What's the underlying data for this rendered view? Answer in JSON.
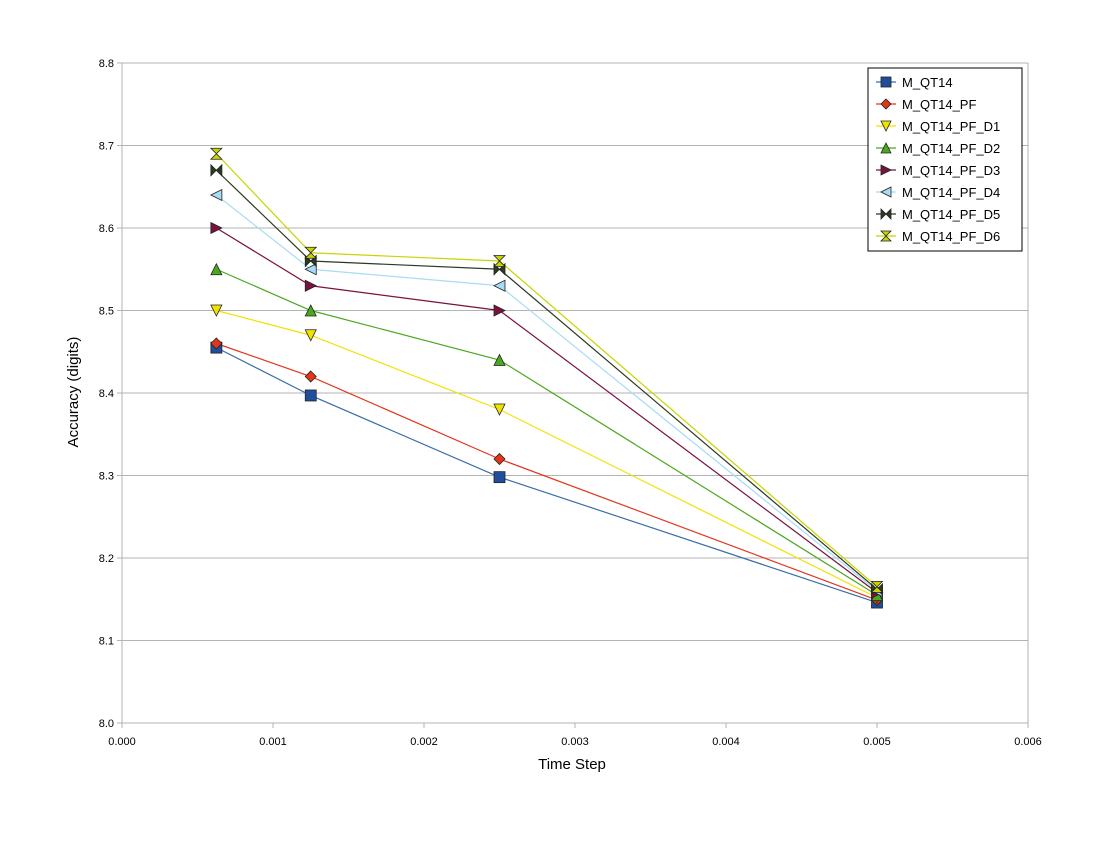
{
  "chart_data": {
    "type": "line",
    "title": "",
    "xlabel": "Time Step",
    "ylabel": "Accuracy (digits)",
    "xlim": [
      0.0,
      0.006
    ],
    "ylim": [
      8.0,
      8.8
    ],
    "xticks": [
      0.0,
      0.001,
      0.002,
      0.003,
      0.004,
      0.005,
      0.006
    ],
    "xtick_labels": [
      "0.000",
      "0.001",
      "0.002",
      "0.003",
      "0.004",
      "0.005",
      "0.006"
    ],
    "yticks": [
      8.0,
      8.1,
      8.2,
      8.3,
      8.4,
      8.5,
      8.6,
      8.7,
      8.8
    ],
    "ytick_labels": [
      "8.0",
      "8.1",
      "8.2",
      "8.3",
      "8.4",
      "8.5",
      "8.6",
      "8.7",
      "8.8"
    ],
    "grid": "horizontal",
    "legend_position": "top-right",
    "x": [
      0.000625,
      0.00125,
      0.0025,
      0.005
    ],
    "series": [
      {
        "name": "M_QT14",
        "values": [
          8.455,
          8.397,
          8.298,
          8.146
        ],
        "color": "#1f4e9c",
        "line_color": "#3a6ea5",
        "marker": "square"
      },
      {
        "name": "M_QT14_PF",
        "values": [
          8.46,
          8.42,
          8.32,
          8.149
        ],
        "color": "#e2361b",
        "line_color": "#e2361b",
        "marker": "diamond"
      },
      {
        "name": "M_QT14_PF_D1",
        "values": [
          8.5,
          8.47,
          8.38,
          8.152
        ],
        "color": "#f2e200",
        "line_color": "#f2e200",
        "marker": "triangle-down"
      },
      {
        "name": "M_QT14_PF_D2",
        "values": [
          8.55,
          8.5,
          8.44,
          8.155
        ],
        "color": "#4aa81e",
        "line_color": "#4aa81e",
        "marker": "triangle-up"
      },
      {
        "name": "M_QT14_PF_D3",
        "values": [
          8.6,
          8.53,
          8.5,
          8.158
        ],
        "color": "#7a1240",
        "line_color": "#7a1240",
        "marker": "triangle-right"
      },
      {
        "name": "M_QT14_PF_D4",
        "values": [
          8.64,
          8.55,
          8.53,
          8.16
        ],
        "color": "#a8dcf5",
        "line_color": "#a8dcf5",
        "marker": "triangle-left"
      },
      {
        "name": "M_QT14_PF_D5",
        "values": [
          8.67,
          8.56,
          8.55,
          8.162
        ],
        "color": "#2b3a22",
        "line_color": "#2b3a22",
        "marker": "bowtie-h"
      },
      {
        "name": "M_QT14_PF_D6",
        "values": [
          8.69,
          8.57,
          8.56,
          8.165
        ],
        "color": "#c8d400",
        "line_color": "#c8d400",
        "marker": "bowtie-v"
      }
    ]
  }
}
